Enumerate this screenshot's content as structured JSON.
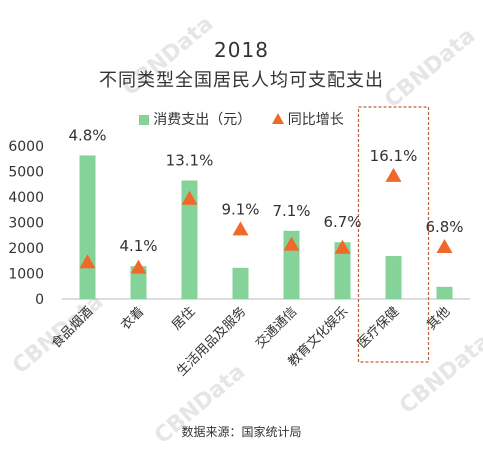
{
  "watermark": "CBNData",
  "legend": {
    "bar_label": "消费支出（元）",
    "marker_label": "同比增长"
  },
  "source": "数据来源：国家统计局",
  "chart_data": {
    "type": "bar",
    "title": "2018",
    "subtitle": "不同类型全国居民人均可支配支出",
    "categories": [
      "食品烟酒",
      "衣着",
      "居住",
      "生活用品及服务",
      "交通通信",
      "教育文化娱乐",
      "医疗保健",
      "其他"
    ],
    "series": [
      {
        "name": "消费支出（元）",
        "type": "bar",
        "values": [
          5631,
          1289,
          4647,
          1223,
          2675,
          2226,
          1685,
          477
        ]
      },
      {
        "name": "同比增长",
        "type": "marker",
        "values": [
          4.8,
          4.1,
          13.1,
          9.1,
          7.1,
          6.7,
          16.1,
          6.8
        ],
        "labels": [
          "4.8%",
          "4.1%",
          "13.1%",
          "9.1%",
          "7.1%",
          "6.7%",
          "16.1%",
          "6.8%"
        ]
      }
    ],
    "ylim": [
      0,
      6000
    ],
    "yticks": [
      0,
      1000,
      2000,
      3000,
      4000,
      5000,
      6000
    ],
    "y2lim": [
      0,
      20
    ],
    "highlight_category": "医疗保健",
    "colors": {
      "bar": "#86d39a",
      "marker": "#ef6a2a",
      "highlight_border": "#c0603a"
    },
    "grid": false,
    "legend_position": "top"
  }
}
